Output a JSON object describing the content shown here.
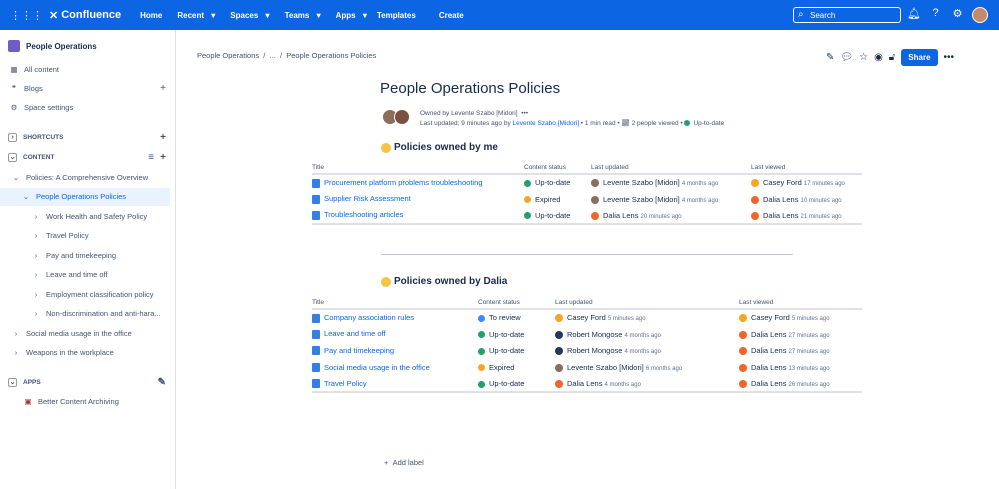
{
  "topbar": {
    "product": "Confluence",
    "nav": [
      "Home",
      "Recent",
      "Spaces",
      "Teams",
      "Apps",
      "Templates"
    ],
    "create": "Create",
    "search_placeholder": "Search"
  },
  "sidebar": {
    "space": "People Operations",
    "all_content": "All content",
    "blogs": "Blogs",
    "space_settings": "Space settings",
    "shortcuts": "SHORTCUTS",
    "content": "CONTENT",
    "apps": "APPS",
    "app_item": "Better Content Archiving",
    "tree": [
      {
        "label": "Policies: A Comprehensive Overview",
        "depth": 0
      },
      {
        "label": "People Operations Policies",
        "depth": 1,
        "selected": true
      },
      {
        "label": "Work Health and Safety Policy",
        "depth": 2
      },
      {
        "label": "Travel Policy",
        "depth": 2
      },
      {
        "label": "Pay and timekeeping",
        "depth": 2
      },
      {
        "label": "Leave and time off",
        "depth": 2
      },
      {
        "label": "Employment classification policy",
        "depth": 2
      },
      {
        "label": "Non-discrimination and anti-hara...",
        "depth": 2
      },
      {
        "label": "Social media usage in the office",
        "depth": 0
      },
      {
        "label": "Weapons in the workplace",
        "depth": 0
      }
    ]
  },
  "breadcrumb": [
    "People Operations",
    "...",
    "People Operations Policies"
  ],
  "share": "Share",
  "page": {
    "title": "People Operations Policies",
    "owned_by": "Owned by Levente Szabo [Midori]",
    "last_updated": "Last updated: 9 minutes ago by",
    "author": "Levente Szabo [Midori]",
    "read": "1 min read",
    "viewed": "2 people viewed",
    "status": "Up-to-date"
  },
  "columns1": [
    "Title",
    "Content status",
    "Last updated",
    "Last viewed"
  ],
  "section1": {
    "heading": "Policies owned by me",
    "rows": [
      {
        "title": "Procurement platform problems troubleshooting",
        "status": "Up-to-date",
        "status_color": "#22a06b",
        "upd_by": "Levente Szabo [Midori]",
        "upd_when": "4 months ago",
        "view_by": "Casey Ford",
        "view_when": "17 minutes ago"
      },
      {
        "title": "Supplier Risk Assessment",
        "status": "Expired",
        "status_color": "#f5a623",
        "upd_by": "Levente Szabo [Midori]",
        "upd_when": "4 months ago",
        "view_by": "Dalia Lens",
        "view_when": "10 minutes ago"
      },
      {
        "title": "Troubleshooting articles",
        "status": "Up-to-date",
        "status_color": "#22a06b",
        "upd_by": "Dalia Lens",
        "upd_when": "20 minutes ago",
        "view_by": "Dalia Lens",
        "view_when": "21 minutes ago"
      }
    ]
  },
  "section2": {
    "heading": "Policies owned by Dalia",
    "rows": [
      {
        "title": "Company association rules",
        "status": "To review",
        "status_color": "#388bff",
        "upd_by": "Casey Ford",
        "upd_when": "5 minutes ago",
        "view_by": "Casey Ford",
        "view_when": "5 minutes ago"
      },
      {
        "title": "Leave and time off",
        "status": "Up-to-date",
        "status_color": "#22a06b",
        "upd_by": "Robert Mongose",
        "upd_when": "4 months ago",
        "view_by": "Dalia Lens",
        "view_when": "27 minutes ago"
      },
      {
        "title": "Pay and timekeeping",
        "status": "Up-to-date",
        "status_color": "#22a06b",
        "upd_by": "Robert Mongose",
        "upd_when": "4 months ago",
        "view_by": "Dalia Lens",
        "view_when": "27 minutes ago"
      },
      {
        "title": "Social media usage in the office",
        "status": "Expired",
        "status_color": "#f5a623",
        "upd_by": "Levente Szabo [Midori]",
        "upd_when": "6 months ago",
        "view_by": "Dalia Lens",
        "view_when": "13 minutes ago"
      },
      {
        "title": "Travel Policy",
        "status": "Up-to-date",
        "status_color": "#22a06b",
        "upd_by": "Dalia Lens",
        "upd_when": "4 months ago",
        "view_by": "Dalia Lens",
        "view_when": "26 minutes ago"
      }
    ]
  },
  "add_label": "Add label"
}
